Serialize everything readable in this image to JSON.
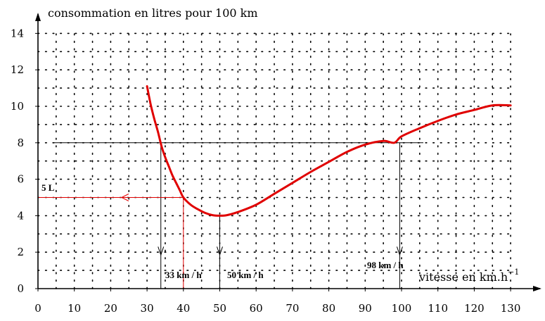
{
  "chart_data": {
    "type": "line",
    "ylabel": "consommation en litres pour 100 km",
    "xlabel": "vitesse en km.h",
    "xlabel_exponent": "−1",
    "xlim": [
      0,
      133
    ],
    "ylim": [
      0,
      14.8
    ],
    "x_ticks": [
      0,
      10,
      20,
      30,
      40,
      50,
      60,
      70,
      80,
      90,
      100,
      110,
      120,
      130
    ],
    "y_ticks": [
      0,
      2,
      4,
      6,
      8,
      10,
      12,
      14
    ],
    "grid": "dotted",
    "series": [
      {
        "color": "#e00000",
        "x": [
          30,
          31,
          32,
          33,
          34,
          35,
          36,
          37,
          38,
          39,
          40,
          42,
          44,
          46,
          48,
          50,
          52,
          55,
          60,
          65,
          70,
          75,
          80,
          85,
          90,
          95,
          98,
          100,
          105,
          110,
          115,
          120,
          125,
          130
        ],
        "y": [
          11.1,
          10.1,
          9.3,
          8.6,
          7.8,
          7.2,
          6.7,
          6.2,
          5.8,
          5.4,
          5.0,
          4.6,
          4.35,
          4.15,
          4.03,
          4.0,
          4.03,
          4.2,
          4.6,
          5.2,
          5.8,
          6.4,
          6.95,
          7.5,
          7.9,
          8.1,
          8.0,
          8.35,
          8.8,
          9.2,
          9.55,
          9.8,
          10.05,
          10.05
        ]
      }
    ],
    "annotations": {
      "label_33": "33 km / h",
      "label_50": "50 km / h",
      "label_98": "98 km / h",
      "label_5L": "5 L"
    }
  }
}
